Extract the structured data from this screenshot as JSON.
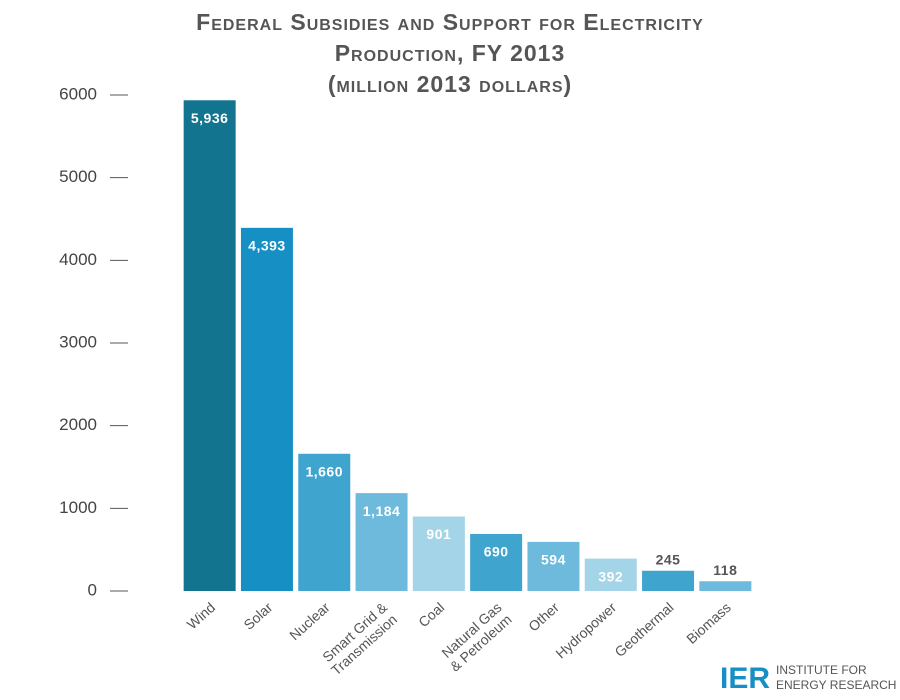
{
  "chart_data": {
    "type": "bar",
    "title": [
      "Federal Subsidies and Support for Electricity",
      "Production, FY 2013",
      "(million 2013 dollars)"
    ],
    "categories": [
      [
        "Wind"
      ],
      [
        "Solar"
      ],
      [
        "Nuclear"
      ],
      [
        "Smart Grid &",
        "Transmission"
      ],
      [
        "Coal"
      ],
      [
        "Natural Gas",
        "& Petroleum"
      ],
      [
        "Other"
      ],
      [
        "Hydropower"
      ],
      [
        "Geothermal"
      ],
      [
        "Biomass"
      ]
    ],
    "values": [
      5936,
      4393,
      1660,
      1184,
      901,
      690,
      594,
      392,
      245,
      118
    ],
    "value_labels": [
      "5,936",
      "4,393",
      "1,660",
      "1,184",
      "901",
      "690",
      "594",
      "392",
      "245",
      "118"
    ],
    "colors": [
      "#12748f",
      "#1690c4",
      "#3fa5cf",
      "#6ebadc",
      "#a3d4e7",
      "#3fa5cf",
      "#6ebadc",
      "#a3d4e7",
      "#3fa5cf",
      "#6ebadc"
    ],
    "ylim": [
      0,
      6000
    ],
    "yticks": [
      0,
      1000,
      2000,
      3000,
      4000,
      5000,
      6000
    ],
    "grid": false
  },
  "logo": {
    "mark": "IER",
    "lines": [
      "INSTITUTE FOR",
      "ENERGY RESEARCH"
    ]
  }
}
